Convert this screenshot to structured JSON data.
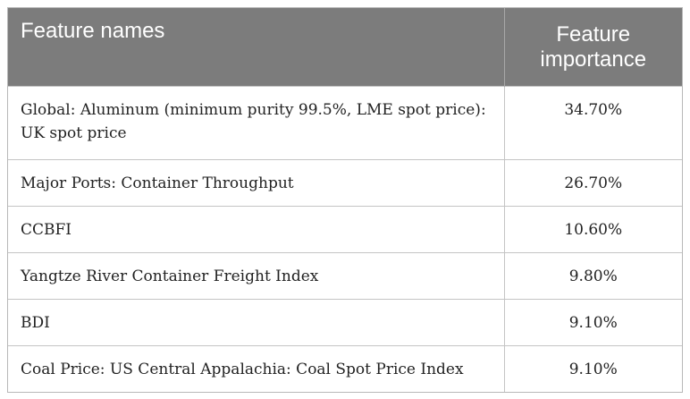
{
  "table": {
    "headers": {
      "feature_names": "Feature names",
      "feature_importance": "Feature importance"
    },
    "rows": [
      {
        "name": "Global: Aluminum (minimum purity 99.5%, LME spot price): UK spot price",
        "value": "34.70%"
      },
      {
        "name": "Major Ports: Container Throughput",
        "value": "26.70%"
      },
      {
        "name": "CCBFI",
        "value": "10.60%"
      },
      {
        "name": "Yangtze River Container Freight Index",
        "value": "9.80%"
      },
      {
        "name": "BDI",
        "value": "9.10%"
      },
      {
        "name": "Coal Price: US Central Appalachia: Coal Spot Price Index",
        "value": "9.10%"
      }
    ]
  }
}
